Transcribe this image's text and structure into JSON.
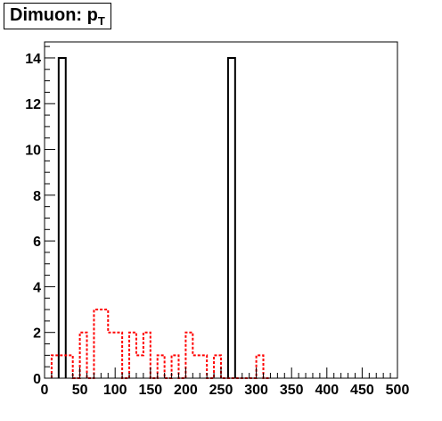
{
  "title": {
    "main": "Dimuon: p",
    "subscript": "T"
  },
  "chart_data": {
    "type": "histogram",
    "title": "Dimuon: pT",
    "xlabel": "",
    "ylabel": "",
    "xlim": [
      0,
      500
    ],
    "ylim": [
      0,
      14.7
    ],
    "grid": false,
    "x_ticks": [
      0,
      50,
      100,
      150,
      200,
      250,
      300,
      350,
      400,
      450,
      500
    ],
    "y_ticks": [
      0,
      2,
      4,
      6,
      8,
      10,
      12,
      14
    ],
    "bin_width": 10,
    "series": [
      {
        "style": "solid",
        "color": "#000000",
        "bins": [
          {
            "x0": 20,
            "x1": 30,
            "y": 14
          },
          {
            "x0": 260,
            "x1": 270,
            "y": 14
          }
        ]
      },
      {
        "style": "dashed",
        "color": "#ff0000",
        "bins": [
          {
            "x0": 10,
            "x1": 20,
            "y": 1
          },
          {
            "x0": 20,
            "x1": 30,
            "y": 1
          },
          {
            "x0": 30,
            "x1": 40,
            "y": 1
          },
          {
            "x0": 40,
            "x1": 50,
            "y": 0
          },
          {
            "x0": 50,
            "x1": 60,
            "y": 2
          },
          {
            "x0": 60,
            "x1": 70,
            "y": 0
          },
          {
            "x0": 70,
            "x1": 80,
            "y": 3
          },
          {
            "x0": 80,
            "x1": 90,
            "y": 3
          },
          {
            "x0": 90,
            "x1": 100,
            "y": 2
          },
          {
            "x0": 100,
            "x1": 110,
            "y": 2
          },
          {
            "x0": 110,
            "x1": 120,
            "y": 0
          },
          {
            "x0": 120,
            "x1": 130,
            "y": 2
          },
          {
            "x0": 130,
            "x1": 140,
            "y": 1
          },
          {
            "x0": 140,
            "x1": 150,
            "y": 2
          },
          {
            "x0": 150,
            "x1": 160,
            "y": 0
          },
          {
            "x0": 160,
            "x1": 170,
            "y": 1
          },
          {
            "x0": 170,
            "x1": 180,
            "y": 0
          },
          {
            "x0": 180,
            "x1": 190,
            "y": 1
          },
          {
            "x0": 190,
            "x1": 200,
            "y": 0
          },
          {
            "x0": 200,
            "x1": 210,
            "y": 2
          },
          {
            "x0": 210,
            "x1": 220,
            "y": 1
          },
          {
            "x0": 220,
            "x1": 230,
            "y": 1
          },
          {
            "x0": 230,
            "x1": 240,
            "y": 0
          },
          {
            "x0": 240,
            "x1": 250,
            "y": 1
          },
          {
            "x0": 250,
            "x1": 260,
            "y": 0
          },
          {
            "x0": 260,
            "x1": 270,
            "y": 0
          },
          {
            "x0": 270,
            "x1": 280,
            "y": 0
          },
          {
            "x0": 280,
            "x1": 290,
            "y": 0
          },
          {
            "x0": 290,
            "x1": 300,
            "y": 0
          },
          {
            "x0": 300,
            "x1": 310,
            "y": 1
          },
          {
            "x0": 310,
            "x1": 320,
            "y": 0
          }
        ]
      }
    ]
  }
}
